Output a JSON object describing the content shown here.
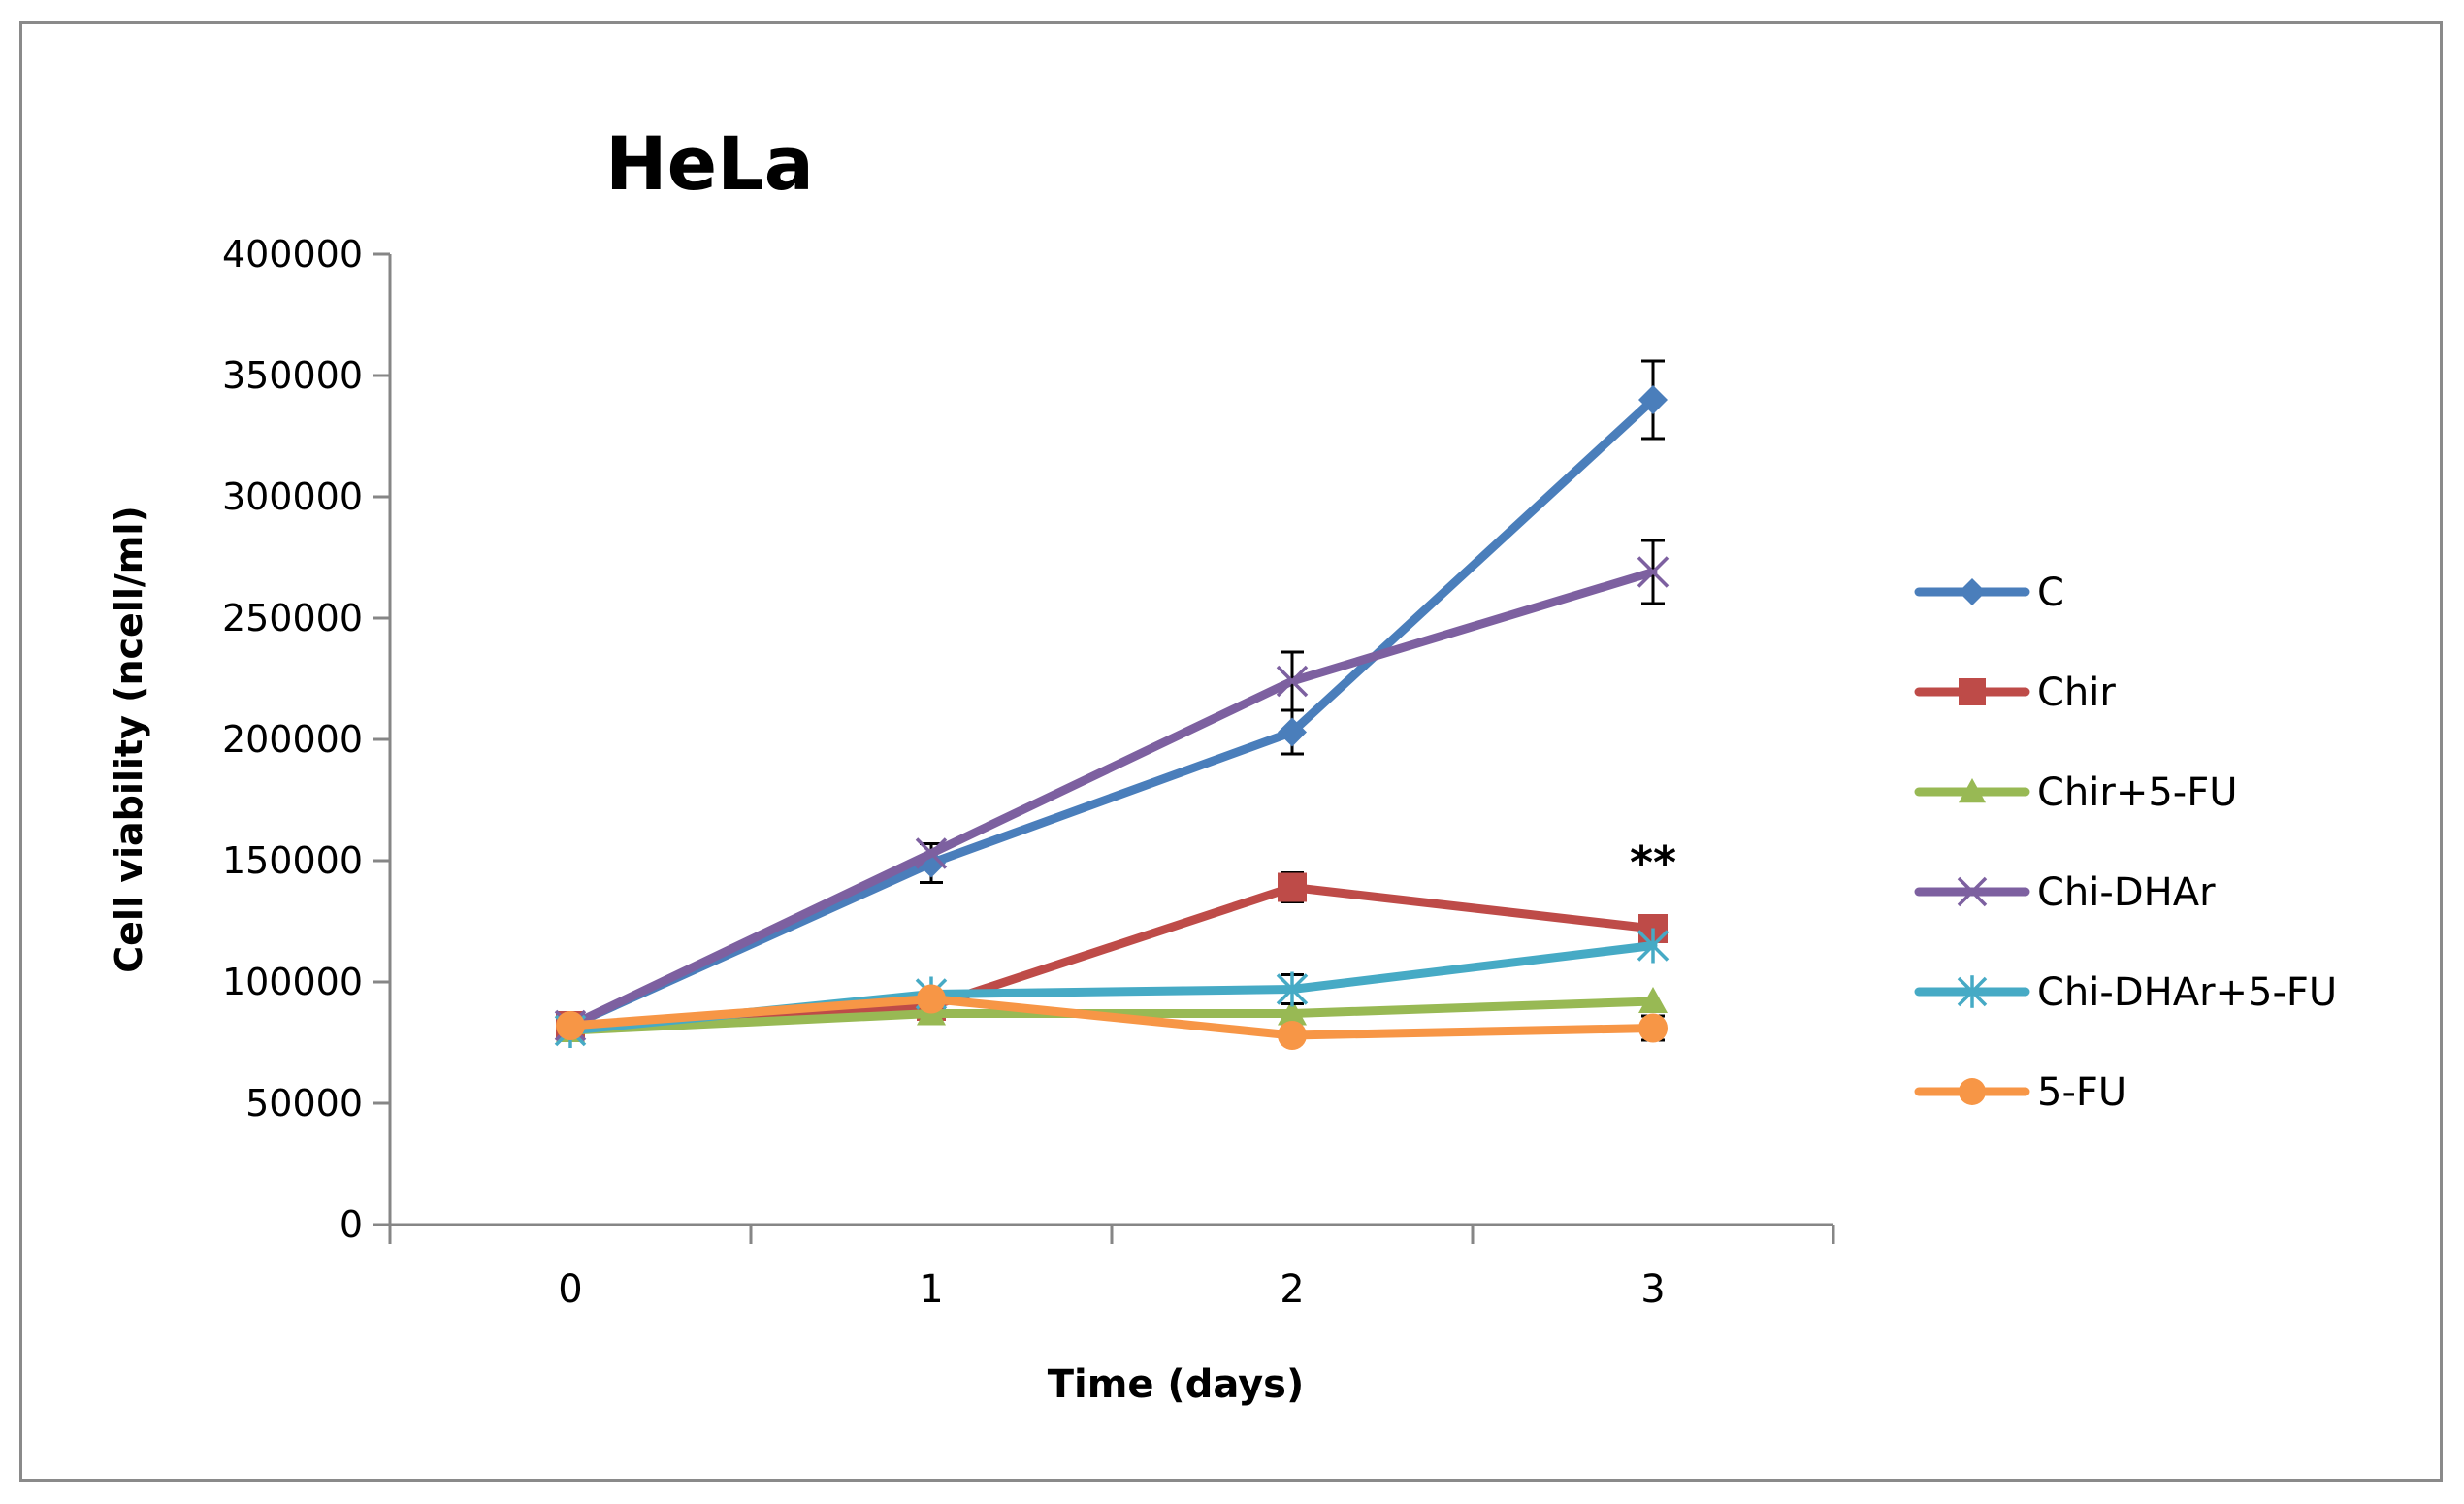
{
  "chart_data": {
    "type": "line",
    "title": "HeLa",
    "xlabel": "Time (days)",
    "ylabel": "Cell viability  (ncell/ml)",
    "x": [
      0,
      1,
      2,
      3
    ],
    "xlim": [
      -0.5,
      3.5
    ],
    "ylim": [
      0,
      400000
    ],
    "yticks": [
      0,
      50000,
      100000,
      150000,
      200000,
      250000,
      300000,
      350000,
      400000
    ],
    "ytick_labels": [
      "0",
      "50000",
      "100000",
      "150000",
      "200000",
      "250000",
      "300000",
      "350000",
      "400000"
    ],
    "xticks": [
      0,
      1,
      2,
      3
    ],
    "xtick_labels": [
      "0",
      "1",
      "2",
      "3"
    ],
    "grid": false,
    "legend_position": "right",
    "series": [
      {
        "name": "C",
        "color": "#4a7ebb",
        "marker": "diamond",
        "values": [
          82000,
          149000,
          203000,
          340000
        ],
        "errors": [
          0,
          8000,
          9000,
          16000
        ]
      },
      {
        "name": "Chir",
        "color": "#be4b48",
        "marker": "square",
        "values": [
          82000,
          90000,
          139000,
          122000
        ],
        "errors": [
          0,
          0,
          6000,
          5000
        ]
      },
      {
        "name": "Chir+5-FU",
        "color": "#98b954",
        "marker": "triangle",
        "values": [
          80000,
          87000,
          87000,
          92000
        ],
        "errors": [
          0,
          0,
          0,
          0
        ]
      },
      {
        "name": "Chi-DHAr",
        "color": "#7d60a0",
        "marker": "x",
        "values": [
          82000,
          153000,
          224000,
          269000
        ],
        "errors": [
          0,
          0,
          12000,
          13000
        ]
      },
      {
        "name": "Chi-DHAr+5-FU",
        "color": "#46aac5",
        "marker": "star",
        "values": [
          80000,
          95000,
          97000,
          115000
        ],
        "errors": [
          0,
          0,
          6000,
          0
        ]
      },
      {
        "name": "5-FU",
        "color": "#f79646",
        "marker": "circle",
        "values": [
          82000,
          93000,
          78000,
          81000
        ],
        "errors": [
          0,
          0,
          0,
          5000
        ]
      }
    ],
    "annotations": [
      {
        "text": "**",
        "x": 3,
        "y": 150000
      }
    ]
  }
}
